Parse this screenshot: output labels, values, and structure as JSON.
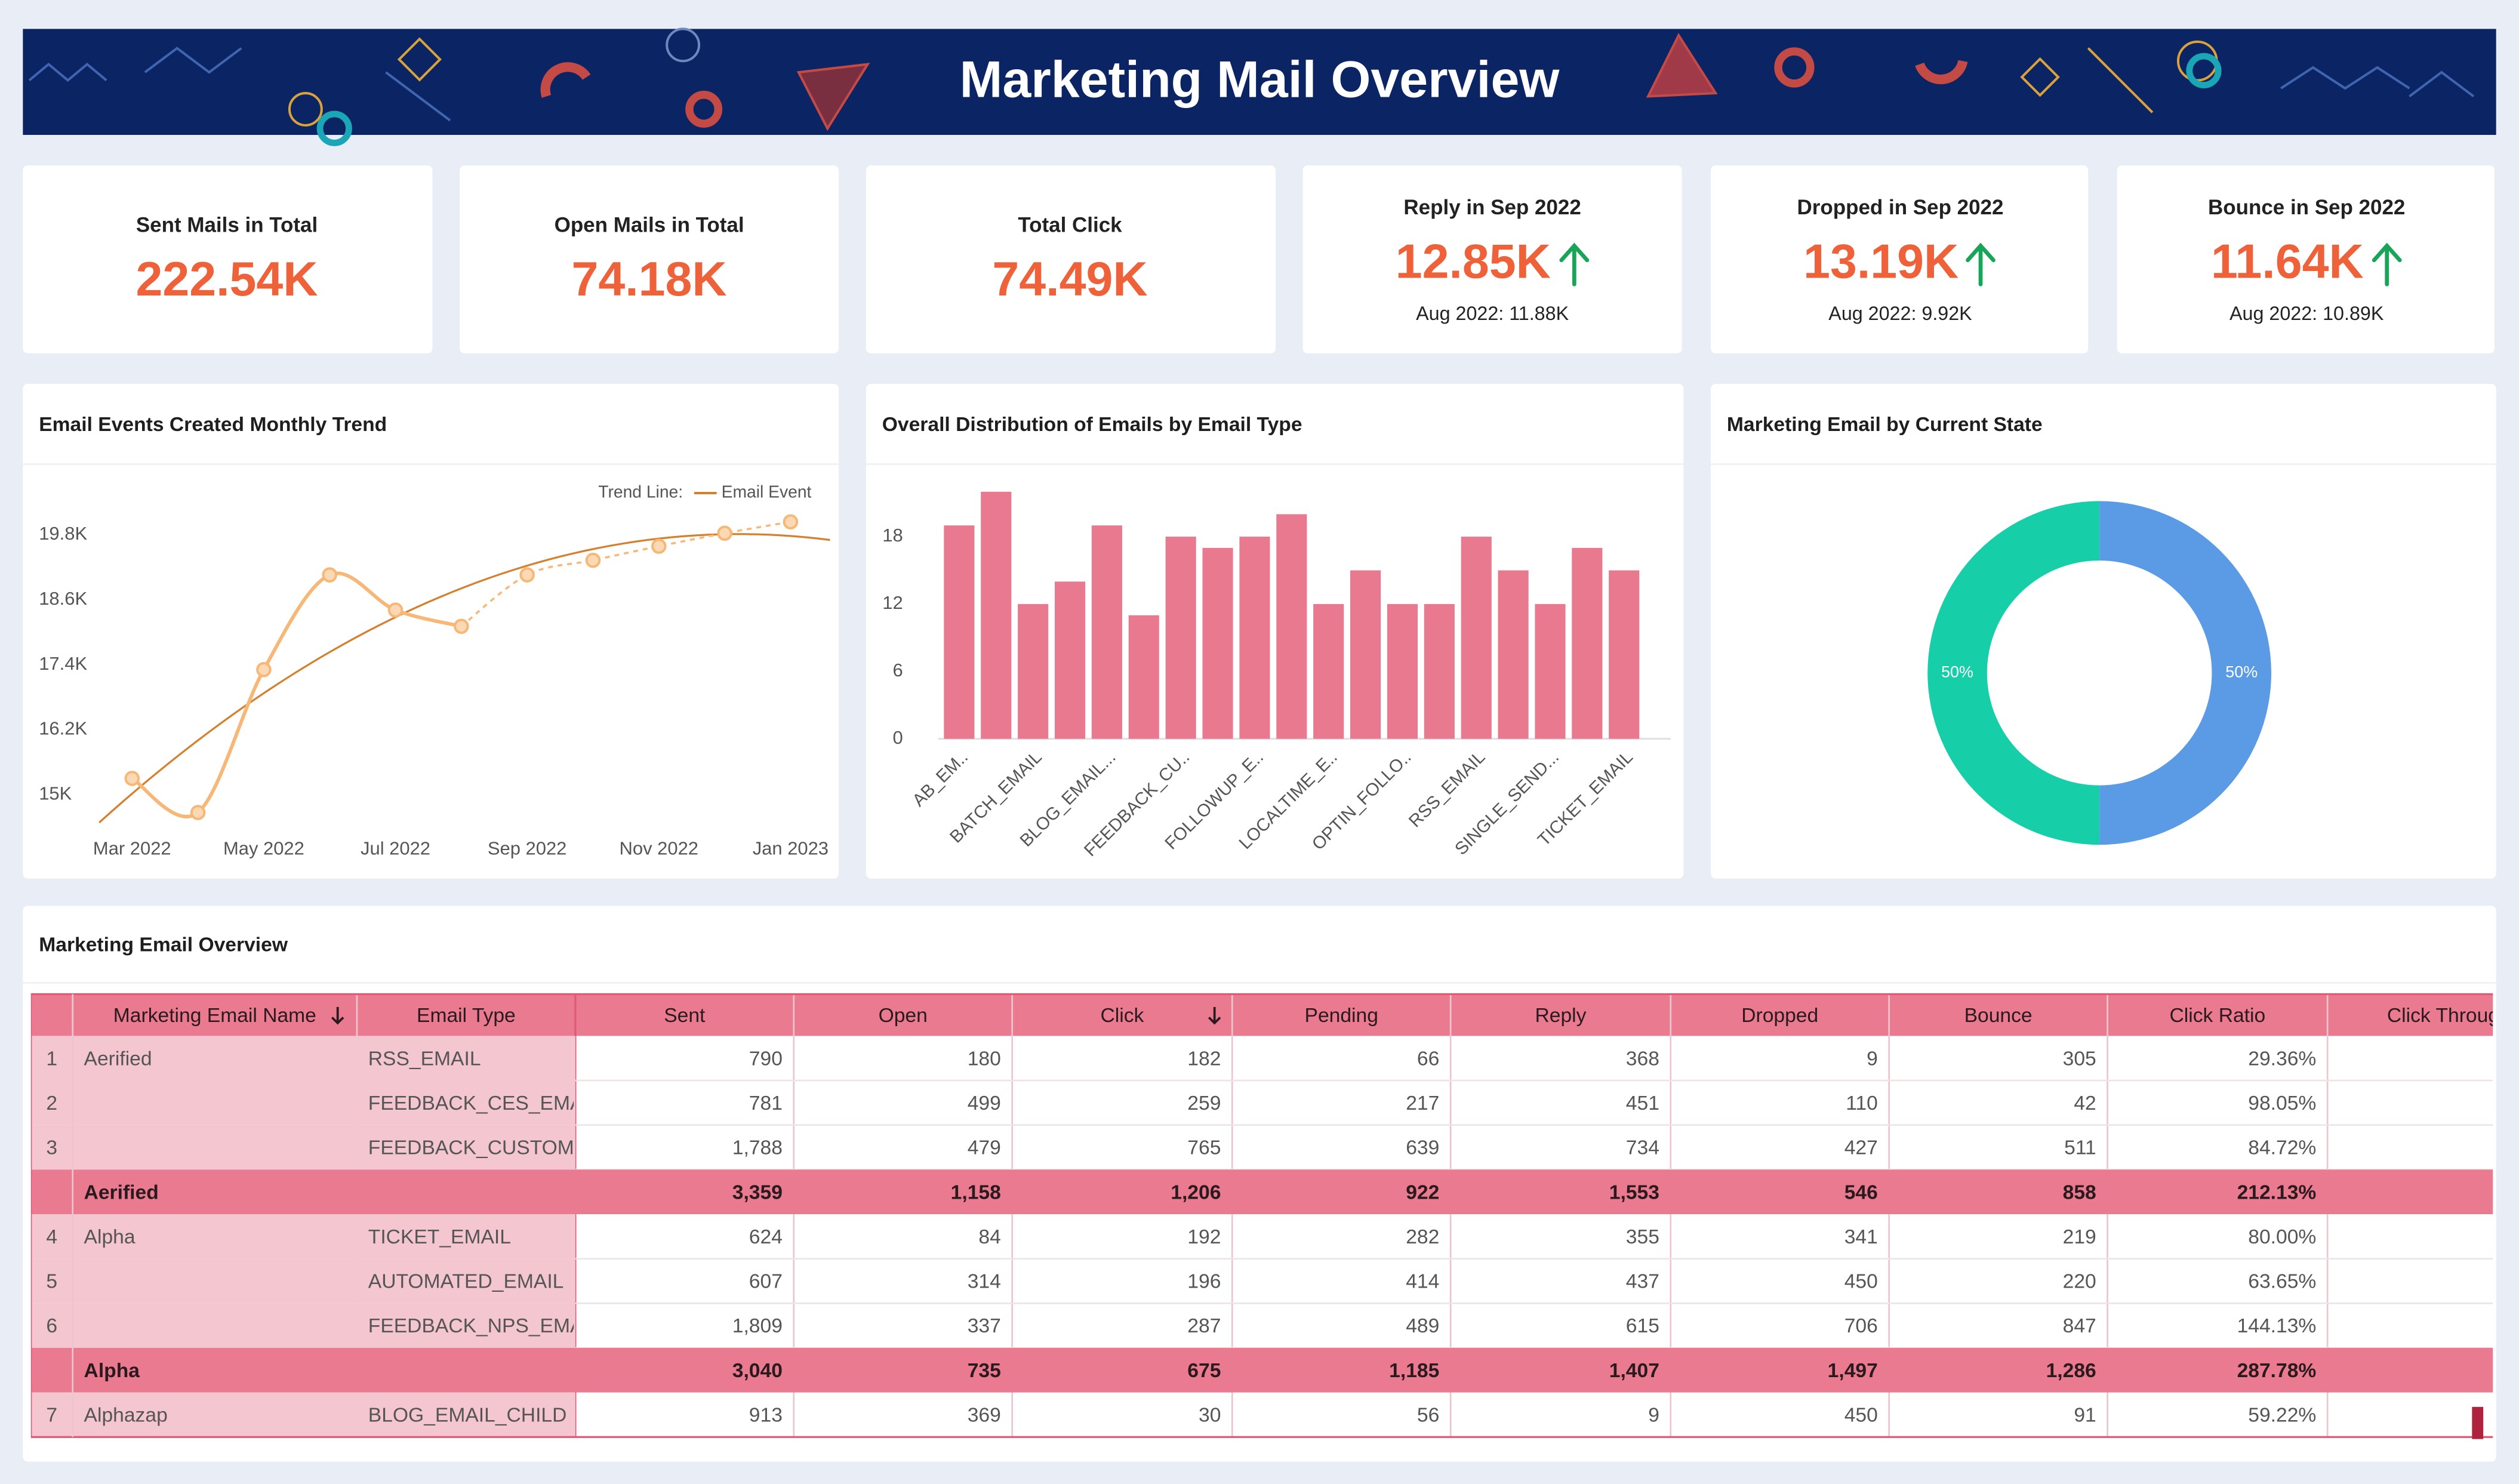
{
  "header": {
    "title": "Marketing Mail Overview"
  },
  "kpis": [
    {
      "label": "Sent Mails in Total",
      "value": "222.54K"
    },
    {
      "label": "Open Mails in Total",
      "value": "74.18K"
    },
    {
      "label": "Total Click",
      "value": "74.49K"
    },
    {
      "label": "Reply in Sep 2022",
      "value": "12.85K",
      "previous": "Aug 2022: 11.88K"
    },
    {
      "label": "Dropped in Sep 2022",
      "value": "13.19K",
      "previous": "Aug 2022: 9.92K"
    },
    {
      "label": "Bounce in Sep 2022",
      "value": "11.64K",
      "previous": "Aug 2022: 10.89K"
    }
  ],
  "chart_data": [
    {
      "type": "line",
      "title": "Email Events Created Monthly Trend",
      "trend_label": "Trend Line:",
      "trend_color": "#d4812f",
      "categories": [
        "Mar 2022",
        null,
        "May 2022",
        null,
        "Jul 2022",
        null,
        "Sep 2022",
        null,
        "Nov 2022",
        null,
        "Jan 2023"
      ],
      "series": [
        {
          "name": "Email Event",
          "color": "#f7b877",
          "values": [
            15300,
            14670,
            17310,
            19060,
            18410,
            18110,
            19060,
            19330,
            19590,
            19830,
            20040
          ]
        }
      ],
      "ylim": [
        14400,
        20780
      ],
      "yticks": [
        {
          "value": 15000,
          "label": "15K"
        },
        {
          "value": 16200,
          "label": "16.2K"
        },
        {
          "value": 17400,
          "label": "17.4K"
        },
        {
          "value": 18600,
          "label": "18.6K"
        },
        {
          "value": 19800,
          "label": "19.8K"
        }
      ]
    },
    {
      "type": "bar",
      "title": "Overall Distribution of Emails by Email Type",
      "color": "#e8798f",
      "categories": [
        "AB_EM..",
        null,
        "BATCH_EMAIL",
        null,
        "BLOG_EMAIL...",
        null,
        "FEEDBACK_CU..",
        null,
        "FOLLOWUP_E..",
        null,
        "LOCALTIME_E..",
        null,
        "OPTIN_FOLLO..",
        null,
        "RSS_EMAIL",
        null,
        "SINGLE_SEND...",
        null,
        "TICKET_EMAIL"
      ],
      "values": [
        19,
        22,
        12,
        14,
        19,
        11,
        18,
        17,
        18,
        20,
        12,
        15,
        12,
        12,
        18,
        15,
        12,
        17,
        15
      ],
      "ylim": [
        0,
        23.6
      ],
      "yticks": [
        0,
        6,
        12,
        18
      ],
      "grid": false
    },
    {
      "type": "pie",
      "title": "Marketing Email by Current State",
      "donut": true,
      "values": [
        50,
        50
      ],
      "value_labels": [
        "50%",
        "50%"
      ],
      "colors": [
        "#5b9be6",
        "#16cfa8"
      ]
    }
  ],
  "table": {
    "title": "Marketing Email Overview",
    "columns": [
      "Marketing Email Name",
      "Email Type",
      "Sent",
      "Open",
      "Click",
      "Pending",
      "Reply",
      "Dropped",
      "Bounce",
      "Click Ratio",
      "Click Through"
    ],
    "rows": [
      {
        "number": "1",
        "name": "Aerified",
        "type": "RSS_EMAIL",
        "cells": [
          "790",
          "180",
          "182",
          "66",
          "368",
          "9",
          "305",
          "29.36%"
        ]
      },
      {
        "number": "2",
        "type": "FEEDBACK_CES_EMAI",
        "cells": [
          "781",
          "499",
          "259",
          "217",
          "451",
          "110",
          "42",
          "98.05%"
        ]
      },
      {
        "number": "3",
        "type": "FEEDBACK_CUSTOM_",
        "cells": [
          "1,788",
          "479",
          "765",
          "639",
          "734",
          "427",
          "511",
          "84.72%"
        ]
      },
      {
        "name": "Aerified",
        "subtotal": true,
        "cells": [
          "3,359",
          "1,158",
          "1,206",
          "922",
          "1,553",
          "546",
          "858",
          "212.13%"
        ]
      },
      {
        "number": "4",
        "name": "Alpha",
        "type": "TICKET_EMAIL",
        "cells": [
          "624",
          "84",
          "192",
          "282",
          "355",
          "341",
          "219",
          "80.00%"
        ]
      },
      {
        "number": "5",
        "type": "AUTOMATED_EMAIL",
        "cells": [
          "607",
          "314",
          "196",
          "414",
          "437",
          "450",
          "220",
          "63.65%"
        ]
      },
      {
        "number": "6",
        "type": "FEEDBACK_NPS_EMA",
        "cells": [
          "1,809",
          "337",
          "287",
          "489",
          "615",
          "706",
          "847",
          "144.13%"
        ]
      },
      {
        "name": "Alpha",
        "subtotal": true,
        "cells": [
          "3,040",
          "735",
          "675",
          "1,185",
          "1,407",
          "1,497",
          "1,286",
          "287.78%"
        ]
      },
      {
        "number": "7",
        "name": "Alphazap",
        "type": "BLOG_EMAIL_CHILD",
        "cells": [
          "913",
          "369",
          "30",
          "56",
          "9",
          "450",
          "91",
          "59.22%"
        ]
      }
    ]
  }
}
